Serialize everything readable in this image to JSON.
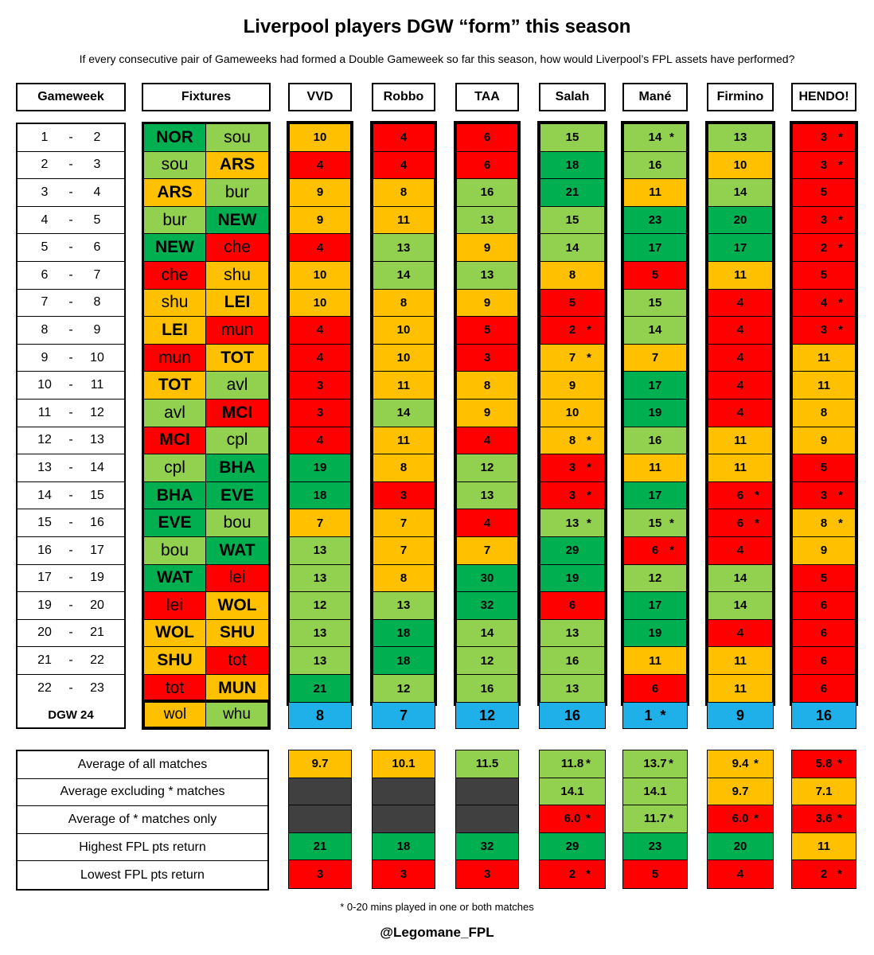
{
  "title": "Liverpool players DGW “form” this season",
  "subtitle": "If every consecutive pair of Gameweeks had formed a Double Gameweek so far this season, how would Liverpool’s FPL assets have performed?",
  "headers": {
    "gameweek": "Gameweek",
    "fixtures": "Fixtures",
    "players": [
      "VVD",
      "Robbo",
      "TAA",
      "Salah",
      "Mané",
      "Firmino",
      "HENDO!"
    ]
  },
  "colors": {
    "dark_green": "#00b050",
    "light_green": "#92d050",
    "amber": "#ffc000",
    "red": "#ff0000",
    "blue": "#1fb0ea",
    "grey": "#404040"
  },
  "chart_data": {
    "type": "table",
    "gameweeks": [
      [
        "1",
        "2"
      ],
      [
        "2",
        "3"
      ],
      [
        "3",
        "4"
      ],
      [
        "4",
        "5"
      ],
      [
        "5",
        "6"
      ],
      [
        "6",
        "7"
      ],
      [
        "7",
        "8"
      ],
      [
        "8",
        "9"
      ],
      [
        "9",
        "10"
      ],
      [
        "10",
        "11"
      ],
      [
        "11",
        "12"
      ],
      [
        "12",
        "13"
      ],
      [
        "13",
        "14"
      ],
      [
        "14",
        "15"
      ],
      [
        "15",
        "16"
      ],
      [
        "16",
        "17"
      ],
      [
        "17",
        "19"
      ],
      [
        "19",
        "20"
      ],
      [
        "20",
        "21"
      ],
      [
        "21",
        "22"
      ],
      [
        "22",
        "23"
      ]
    ],
    "fixtures": [
      [
        {
          "t": "NOR",
          "c": "dg",
          "h": true
        },
        {
          "t": "sou",
          "c": "lg",
          "h": false
        }
      ],
      [
        {
          "t": "sou",
          "c": "lg",
          "h": false
        },
        {
          "t": "ARS",
          "c": "am",
          "h": true
        }
      ],
      [
        {
          "t": "ARS",
          "c": "am",
          "h": true
        },
        {
          "t": "bur",
          "c": "lg",
          "h": false
        }
      ],
      [
        {
          "t": "bur",
          "c": "lg",
          "h": false
        },
        {
          "t": "NEW",
          "c": "dg",
          "h": true
        }
      ],
      [
        {
          "t": "NEW",
          "c": "dg",
          "h": true
        },
        {
          "t": "che",
          "c": "rd",
          "h": false
        }
      ],
      [
        {
          "t": "che",
          "c": "rd",
          "h": false
        },
        {
          "t": "shu",
          "c": "am",
          "h": false
        }
      ],
      [
        {
          "t": "shu",
          "c": "am",
          "h": false
        },
        {
          "t": "LEI",
          "c": "am",
          "h": true
        }
      ],
      [
        {
          "t": "LEI",
          "c": "am",
          "h": true
        },
        {
          "t": "mun",
          "c": "rd",
          "h": false
        }
      ],
      [
        {
          "t": "mun",
          "c": "rd",
          "h": false
        },
        {
          "t": "TOT",
          "c": "am",
          "h": true
        }
      ],
      [
        {
          "t": "TOT",
          "c": "am",
          "h": true
        },
        {
          "t": "avl",
          "c": "lg",
          "h": false
        }
      ],
      [
        {
          "t": "avl",
          "c": "lg",
          "h": false
        },
        {
          "t": "MCI",
          "c": "rd",
          "h": true
        }
      ],
      [
        {
          "t": "MCI",
          "c": "rd",
          "h": true
        },
        {
          "t": "cpl",
          "c": "lg",
          "h": false
        }
      ],
      [
        {
          "t": "cpl",
          "c": "lg",
          "h": false
        },
        {
          "t": "BHA",
          "c": "dg",
          "h": true
        }
      ],
      [
        {
          "t": "BHA",
          "c": "dg",
          "h": true
        },
        {
          "t": "EVE",
          "c": "dg",
          "h": true
        }
      ],
      [
        {
          "t": "EVE",
          "c": "dg",
          "h": true
        },
        {
          "t": "bou",
          "c": "lg",
          "h": false
        }
      ],
      [
        {
          "t": "bou",
          "c": "lg",
          "h": false
        },
        {
          "t": "WAT",
          "c": "dg",
          "h": true
        }
      ],
      [
        {
          "t": "WAT",
          "c": "dg",
          "h": true
        },
        {
          "t": "lei",
          "c": "rd",
          "h": false
        }
      ],
      [
        {
          "t": "lei",
          "c": "rd",
          "h": false
        },
        {
          "t": "WOL",
          "c": "am",
          "h": true
        }
      ],
      [
        {
          "t": "WOL",
          "c": "am",
          "h": true
        },
        {
          "t": "SHU",
          "c": "am",
          "h": true
        }
      ],
      [
        {
          "t": "SHU",
          "c": "am",
          "h": true
        },
        {
          "t": "tot",
          "c": "rd",
          "h": false
        }
      ],
      [
        {
          "t": "tot",
          "c": "rd",
          "h": false
        },
        {
          "t": "MUN",
          "c": "am",
          "h": true
        }
      ]
    ],
    "players": [
      {
        "name": "VVD",
        "points": [
          {
            "v": 10,
            "c": "am"
          },
          {
            "v": 4,
            "c": "rd"
          },
          {
            "v": 9,
            "c": "am"
          },
          {
            "v": 9,
            "c": "am"
          },
          {
            "v": 4,
            "c": "rd"
          },
          {
            "v": 10,
            "c": "am"
          },
          {
            "v": 10,
            "c": "am"
          },
          {
            "v": 4,
            "c": "rd"
          },
          {
            "v": 4,
            "c": "rd"
          },
          {
            "v": 3,
            "c": "rd"
          },
          {
            "v": 3,
            "c": "rd"
          },
          {
            "v": 4,
            "c": "rd"
          },
          {
            "v": 19,
            "c": "dg"
          },
          {
            "v": 18,
            "c": "dg"
          },
          {
            "v": 7,
            "c": "am"
          },
          {
            "v": 13,
            "c": "lg"
          },
          {
            "v": 13,
            "c": "lg"
          },
          {
            "v": 12,
            "c": "lg"
          },
          {
            "v": 13,
            "c": "lg"
          },
          {
            "v": 13,
            "c": "lg"
          },
          {
            "v": 21,
            "c": "dg"
          }
        ],
        "dgw24": {
          "v": "8",
          "s": false
        }
      },
      {
        "name": "Robbo",
        "points": [
          {
            "v": 4,
            "c": "rd"
          },
          {
            "v": 4,
            "c": "rd"
          },
          {
            "v": 8,
            "c": "am"
          },
          {
            "v": 11,
            "c": "am"
          },
          {
            "v": 13,
            "c": "lg"
          },
          {
            "v": 14,
            "c": "lg"
          },
          {
            "v": 8,
            "c": "am"
          },
          {
            "v": 10,
            "c": "am"
          },
          {
            "v": 10,
            "c": "am"
          },
          {
            "v": 11,
            "c": "am"
          },
          {
            "v": 14,
            "c": "lg"
          },
          {
            "v": 11,
            "c": "am"
          },
          {
            "v": 8,
            "c": "am"
          },
          {
            "v": 3,
            "c": "rd"
          },
          {
            "v": 7,
            "c": "am"
          },
          {
            "v": 7,
            "c": "am"
          },
          {
            "v": 8,
            "c": "am"
          },
          {
            "v": 13,
            "c": "lg"
          },
          {
            "v": 18,
            "c": "dg"
          },
          {
            "v": 18,
            "c": "dg"
          },
          {
            "v": 12,
            "c": "lg"
          }
        ],
        "dgw24": {
          "v": "7",
          "s": false
        }
      },
      {
        "name": "TAA",
        "points": [
          {
            "v": 6,
            "c": "rd"
          },
          {
            "v": 6,
            "c": "rd"
          },
          {
            "v": 16,
            "c": "lg"
          },
          {
            "v": 13,
            "c": "lg"
          },
          {
            "v": 9,
            "c": "am"
          },
          {
            "v": 13,
            "c": "lg"
          },
          {
            "v": 9,
            "c": "am"
          },
          {
            "v": 5,
            "c": "rd"
          },
          {
            "v": 3,
            "c": "rd"
          },
          {
            "v": 8,
            "c": "am"
          },
          {
            "v": 9,
            "c": "am"
          },
          {
            "v": 4,
            "c": "rd"
          },
          {
            "v": 12,
            "c": "lg"
          },
          {
            "v": 13,
            "c": "lg"
          },
          {
            "v": 4,
            "c": "rd"
          },
          {
            "v": 7,
            "c": "am"
          },
          {
            "v": 30,
            "c": "dg"
          },
          {
            "v": 32,
            "c": "dg"
          },
          {
            "v": 14,
            "c": "lg"
          },
          {
            "v": 12,
            "c": "lg"
          },
          {
            "v": 16,
            "c": "lg"
          }
        ],
        "dgw24": {
          "v": "12",
          "s": false
        }
      },
      {
        "name": "Salah",
        "points": [
          {
            "v": 15,
            "c": "lg"
          },
          {
            "v": 18,
            "c": "dg"
          },
          {
            "v": 21,
            "c": "dg"
          },
          {
            "v": 15,
            "c": "lg"
          },
          {
            "v": 14,
            "c": "lg"
          },
          {
            "v": 8,
            "c": "am"
          },
          {
            "v": 5,
            "c": "rd"
          },
          {
            "v": 2,
            "c": "rd",
            "s": true
          },
          {
            "v": 7,
            "c": "am",
            "s": true
          },
          {
            "v": 9,
            "c": "am"
          },
          {
            "v": 10,
            "c": "am"
          },
          {
            "v": 8,
            "c": "am",
            "s": true
          },
          {
            "v": 3,
            "c": "rd",
            "s": true
          },
          {
            "v": 3,
            "c": "rd",
            "s": true
          },
          {
            "v": 13,
            "c": "lg",
            "s": true
          },
          {
            "v": 29,
            "c": "dg"
          },
          {
            "v": 19,
            "c": "dg"
          },
          {
            "v": 6,
            "c": "rd"
          },
          {
            "v": 13,
            "c": "lg"
          },
          {
            "v": 16,
            "c": "lg"
          },
          {
            "v": 13,
            "c": "lg"
          }
        ],
        "dgw24": {
          "v": "16",
          "s": false
        }
      },
      {
        "name": "Mané",
        "points": [
          {
            "v": 14,
            "c": "lg",
            "s": true
          },
          {
            "v": 16,
            "c": "lg"
          },
          {
            "v": 11,
            "c": "am"
          },
          {
            "v": 23,
            "c": "dg"
          },
          {
            "v": 17,
            "c": "dg"
          },
          {
            "v": 5,
            "c": "rd"
          },
          {
            "v": 15,
            "c": "lg"
          },
          {
            "v": 14,
            "c": "lg"
          },
          {
            "v": 7,
            "c": "am"
          },
          {
            "v": 17,
            "c": "dg"
          },
          {
            "v": 19,
            "c": "dg"
          },
          {
            "v": 16,
            "c": "lg"
          },
          {
            "v": 11,
            "c": "am"
          },
          {
            "v": 17,
            "c": "dg"
          },
          {
            "v": 15,
            "c": "lg",
            "s": true
          },
          {
            "v": 6,
            "c": "rd",
            "s": true
          },
          {
            "v": 12,
            "c": "lg"
          },
          {
            "v": 17,
            "c": "dg"
          },
          {
            "v": 19,
            "c": "dg"
          },
          {
            "v": 11,
            "c": "am"
          },
          {
            "v": 6,
            "c": "rd"
          }
        ],
        "dgw24": {
          "v": "1",
          "s": true
        }
      },
      {
        "name": "Firmino",
        "points": [
          {
            "v": 13,
            "c": "lg"
          },
          {
            "v": 10,
            "c": "am"
          },
          {
            "v": 14,
            "c": "lg"
          },
          {
            "v": 20,
            "c": "dg"
          },
          {
            "v": 17,
            "c": "dg"
          },
          {
            "v": 11,
            "c": "am"
          },
          {
            "v": 4,
            "c": "rd"
          },
          {
            "v": 4,
            "c": "rd"
          },
          {
            "v": 4,
            "c": "rd"
          },
          {
            "v": 4,
            "c": "rd"
          },
          {
            "v": 4,
            "c": "rd"
          },
          {
            "v": 11,
            "c": "am"
          },
          {
            "v": 11,
            "c": "am"
          },
          {
            "v": 6,
            "c": "rd",
            "s": true
          },
          {
            "v": 6,
            "c": "rd",
            "s": true
          },
          {
            "v": 4,
            "c": "rd"
          },
          {
            "v": 14,
            "c": "lg"
          },
          {
            "v": 14,
            "c": "lg"
          },
          {
            "v": 4,
            "c": "rd"
          },
          {
            "v": 11,
            "c": "am"
          },
          {
            "v": 11,
            "c": "am"
          }
        ],
        "dgw24": {
          "v": "9",
          "s": false
        }
      },
      {
        "name": "HENDO!",
        "points": [
          {
            "v": 3,
            "c": "rd",
            "s": true
          },
          {
            "v": 3,
            "c": "rd",
            "s": true
          },
          {
            "v": 5,
            "c": "rd"
          },
          {
            "v": 3,
            "c": "rd",
            "s": true
          },
          {
            "v": 2,
            "c": "rd",
            "s": true
          },
          {
            "v": 5,
            "c": "rd"
          },
          {
            "v": 4,
            "c": "rd",
            "s": true
          },
          {
            "v": 3,
            "c": "rd",
            "s": true
          },
          {
            "v": 11,
            "c": "am"
          },
          {
            "v": 11,
            "c": "am"
          },
          {
            "v": 8,
            "c": "am"
          },
          {
            "v": 9,
            "c": "am"
          },
          {
            "v": 5,
            "c": "rd"
          },
          {
            "v": 3,
            "c": "rd",
            "s": true
          },
          {
            "v": 8,
            "c": "am",
            "s": true
          },
          {
            "v": 9,
            "c": "am"
          },
          {
            "v": 5,
            "c": "rd"
          },
          {
            "v": 6,
            "c": "rd"
          },
          {
            "v": 6,
            "c": "rd"
          },
          {
            "v": 6,
            "c": "rd"
          },
          {
            "v": 6,
            "c": "rd"
          }
        ],
        "dgw24": {
          "v": "16",
          "s": false
        }
      }
    ],
    "dgw24": {
      "label": "DGW 24",
      "fixtures": [
        {
          "t": "wol",
          "c": "am"
        },
        {
          "t": "whu",
          "c": "lg"
        }
      ]
    },
    "summary_labels": [
      "Average of all matches",
      "Average excluding * matches",
      "Average of * matches only",
      "Highest FPL pts return",
      "Lowest FPL pts return"
    ],
    "summary": [
      [
        {
          "v": "9.7",
          "c": "am"
        },
        {
          "v": "",
          "c": "gy"
        },
        {
          "v": "",
          "c": "gy"
        },
        {
          "v": "21",
          "c": "dg"
        },
        {
          "v": "3",
          "c": "rd"
        }
      ],
      [
        {
          "v": "10.1",
          "c": "am"
        },
        {
          "v": "",
          "c": "gy"
        },
        {
          "v": "",
          "c": "gy"
        },
        {
          "v": "18",
          "c": "dg"
        },
        {
          "v": "3",
          "c": "rd"
        }
      ],
      [
        {
          "v": "11.5",
          "c": "lg"
        },
        {
          "v": "",
          "c": "gy"
        },
        {
          "v": "",
          "c": "gy"
        },
        {
          "v": "32",
          "c": "dg"
        },
        {
          "v": "3",
          "c": "rd"
        }
      ],
      [
        {
          "v": "11.8",
          "c": "lg",
          "s": true
        },
        {
          "v": "14.1",
          "c": "lg"
        },
        {
          "v": "6.0",
          "c": "rd",
          "s": true
        },
        {
          "v": "29",
          "c": "dg"
        },
        {
          "v": "2",
          "c": "rd",
          "s": true
        }
      ],
      [
        {
          "v": "13.7",
          "c": "lg",
          "s": true
        },
        {
          "v": "14.1",
          "c": "lg"
        },
        {
          "v": "11.7",
          "c": "lg",
          "s": true
        },
        {
          "v": "23",
          "c": "dg"
        },
        {
          "v": "5",
          "c": "rd"
        }
      ],
      [
        {
          "v": "9.4",
          "c": "am",
          "s": true
        },
        {
          "v": "9.7",
          "c": "am"
        },
        {
          "v": "6.0",
          "c": "rd",
          "s": true
        },
        {
          "v": "20",
          "c": "dg"
        },
        {
          "v": "4",
          "c": "rd"
        }
      ],
      [
        {
          "v": "5.8",
          "c": "rd",
          "s": true
        },
        {
          "v": "7.1",
          "c": "am"
        },
        {
          "v": "3.6",
          "c": "rd",
          "s": true
        },
        {
          "v": "11",
          "c": "am"
        },
        {
          "v": "2",
          "c": "rd",
          "s": true
        }
      ]
    ],
    "asterisk": "*",
    "dash": "-"
  },
  "footnote": "* 0-20 mins played in one or both matches",
  "handle": "@Legomane_FPL"
}
